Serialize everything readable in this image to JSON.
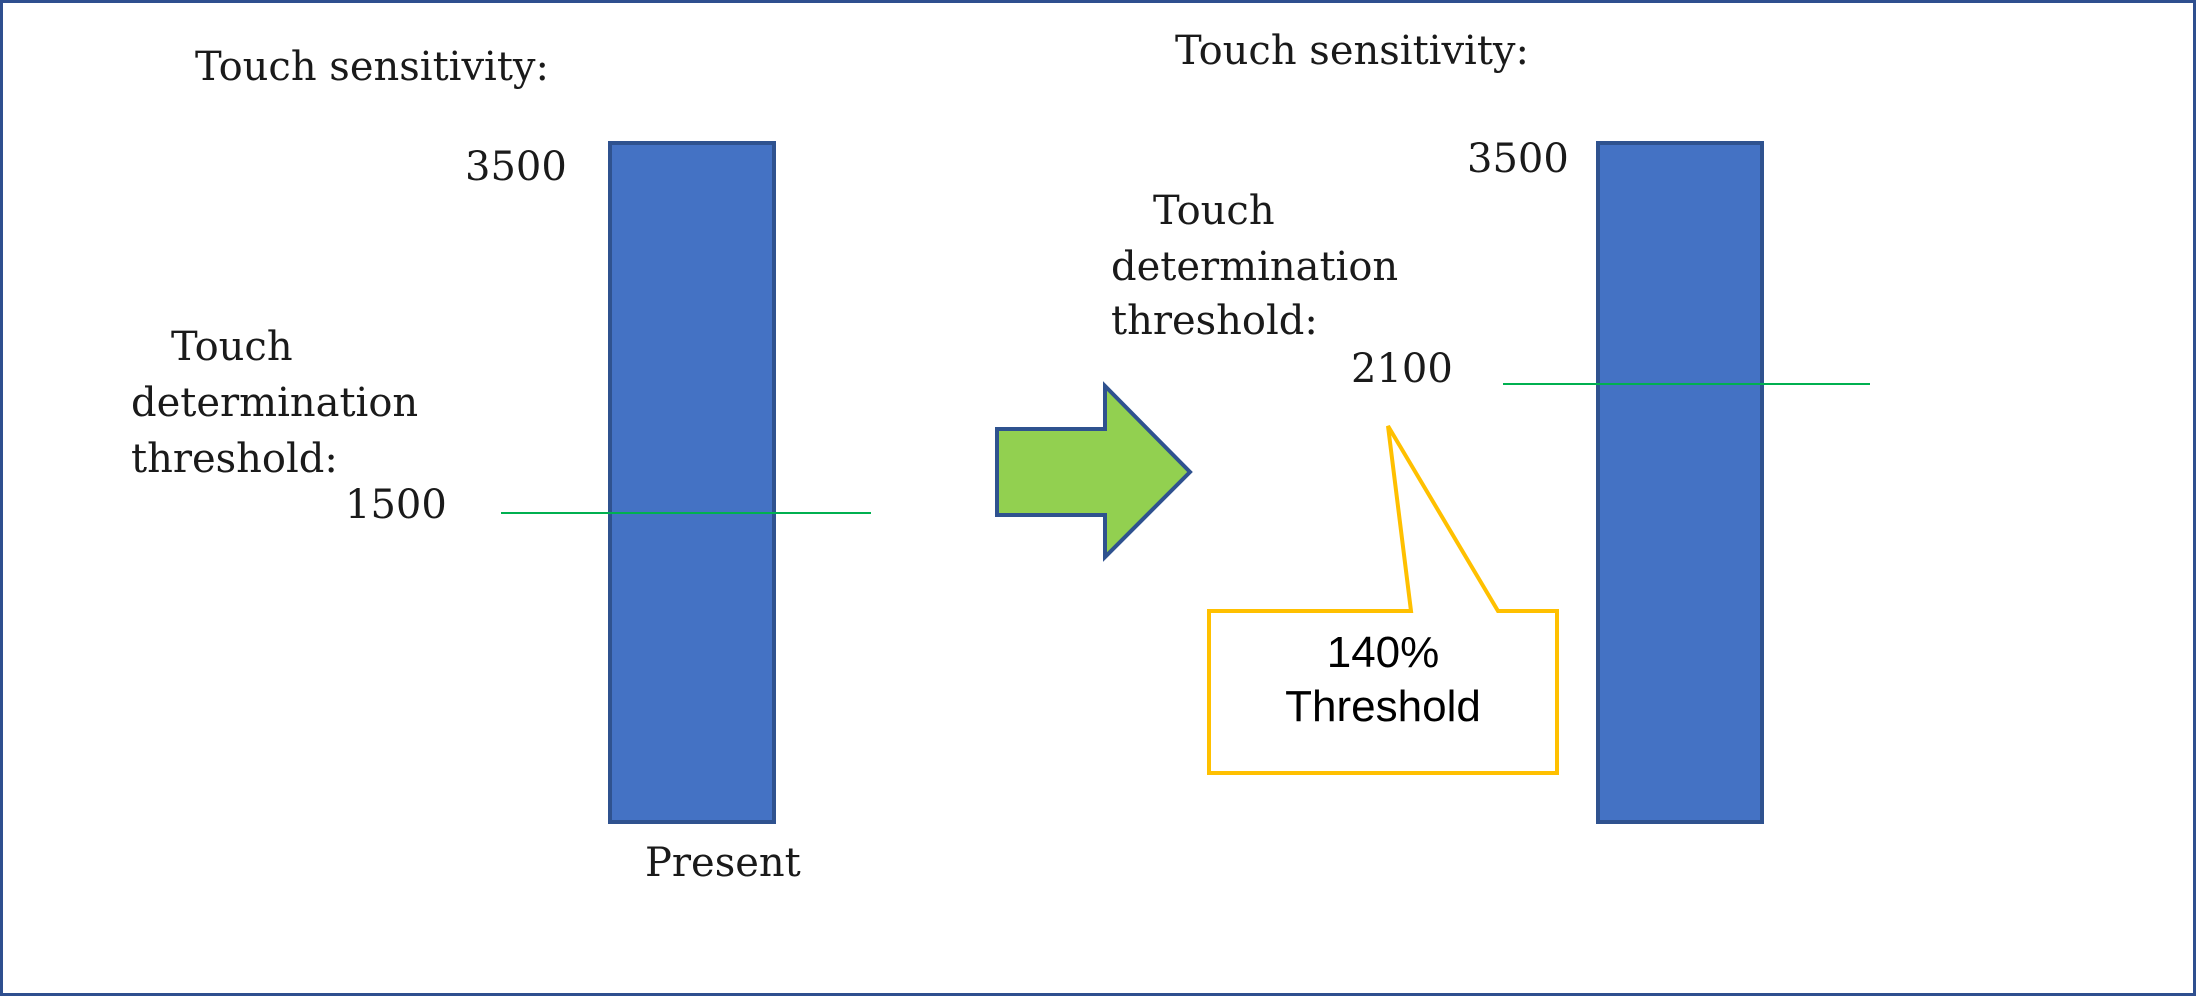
{
  "colors": {
    "bar_fill": "#4472c4",
    "bar_stroke": "#2f528f",
    "threshold_line": "#00b050",
    "arrow_fill": "#92d050",
    "arrow_stroke": "#2f528f",
    "callout_stroke": "#ffc000",
    "frame": "#2f4f8f"
  },
  "left_panel": {
    "sensitivity_label": "Touch sensitivity:",
    "max_value_label": "3500",
    "threshold_label_line1": "Touch",
    "threshold_label_line2": "determination",
    "threshold_label_line3": "threshold:",
    "threshold_value_label": "1500",
    "caption": "Present",
    "max_value": 3500,
    "threshold_value": 1500
  },
  "transition_arrow": {
    "icon": "right-arrow-icon"
  },
  "right_panel": {
    "sensitivity_label": "Touch sensitivity:",
    "max_value_label": "3500",
    "threshold_label_line1": "Touch",
    "threshold_label_line2": "determination",
    "threshold_label_line3": "threshold:",
    "threshold_value_label": "2100",
    "max_value": 3500,
    "threshold_value": 2100,
    "callout_line1": "140%",
    "callout_line2": "Threshold"
  }
}
